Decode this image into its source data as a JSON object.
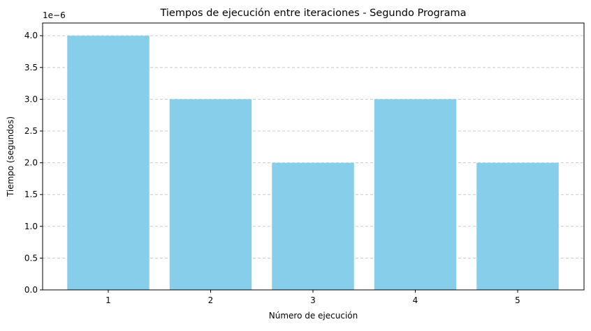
{
  "chart_data": {
    "type": "bar",
    "title": "Tiempos de ejecución entre iteraciones - Segundo Programa",
    "xlabel": "Número de ejecución",
    "ylabel": "Tiempo (segundos)",
    "offset_label": "1e−6",
    "categories": [
      "1",
      "2",
      "3",
      "4",
      "5"
    ],
    "values": [
      4e-06,
      3e-06,
      2e-06,
      3e-06,
      2e-06
    ],
    "ylim": [
      0,
      4.2e-06
    ],
    "yticks": [
      0,
      5e-07,
      1e-06,
      1.5e-06,
      2e-06,
      2.5e-06,
      3e-06,
      3.5e-06,
      4e-06
    ],
    "ytick_labels": [
      "0.0",
      "0.5",
      "1.0",
      "1.5",
      "2.0",
      "2.5",
      "3.0",
      "3.5",
      "4.0"
    ],
    "grid": "y, dashed",
    "bar_color": "#87CEEB",
    "grid_color": "#C8C8C8"
  }
}
